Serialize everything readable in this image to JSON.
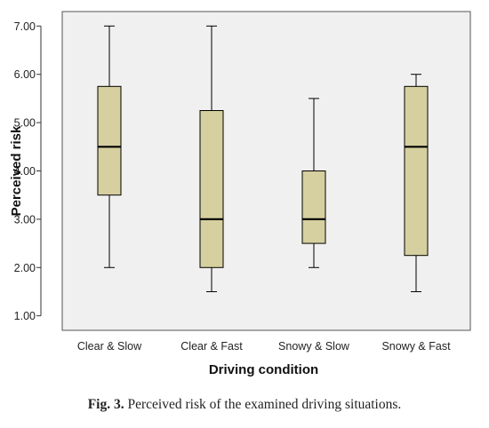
{
  "caption": {
    "label": "Fig. 3.",
    "text": "Perceived risk of the examined driving situations."
  },
  "chart_data": {
    "type": "box",
    "xlabel": "Driving condition",
    "ylabel": "Perceived risk",
    "ylim": [
      0.7,
      7.3
    ],
    "yticks": [
      "1.00",
      "2.00",
      "3.00",
      "4.00",
      "5.00",
      "6.00",
      "7.00"
    ],
    "grid": false,
    "box_fill": "#d6cf9f",
    "frame_fill": "#f0f0f0",
    "categories": [
      "Clear & Slow",
      "Clear & Fast",
      "Snowy & Slow",
      "Snowy & Fast"
    ],
    "boxes": [
      {
        "category": "Clear & Slow",
        "min": 2.0,
        "q1": 3.5,
        "median": 4.5,
        "q3": 5.75,
        "max": 7.0
      },
      {
        "category": "Clear & Fast",
        "min": 1.5,
        "q1": 2.0,
        "median": 3.0,
        "q3": 5.25,
        "max": 7.0
      },
      {
        "category": "Snowy & Slow",
        "min": 2.0,
        "q1": 2.5,
        "median": 3.0,
        "q3": 4.0,
        "max": 5.5
      },
      {
        "category": "Snowy & Fast",
        "min": 1.5,
        "q1": 2.25,
        "median": 4.5,
        "q3": 5.75,
        "max": 6.0
      }
    ]
  }
}
